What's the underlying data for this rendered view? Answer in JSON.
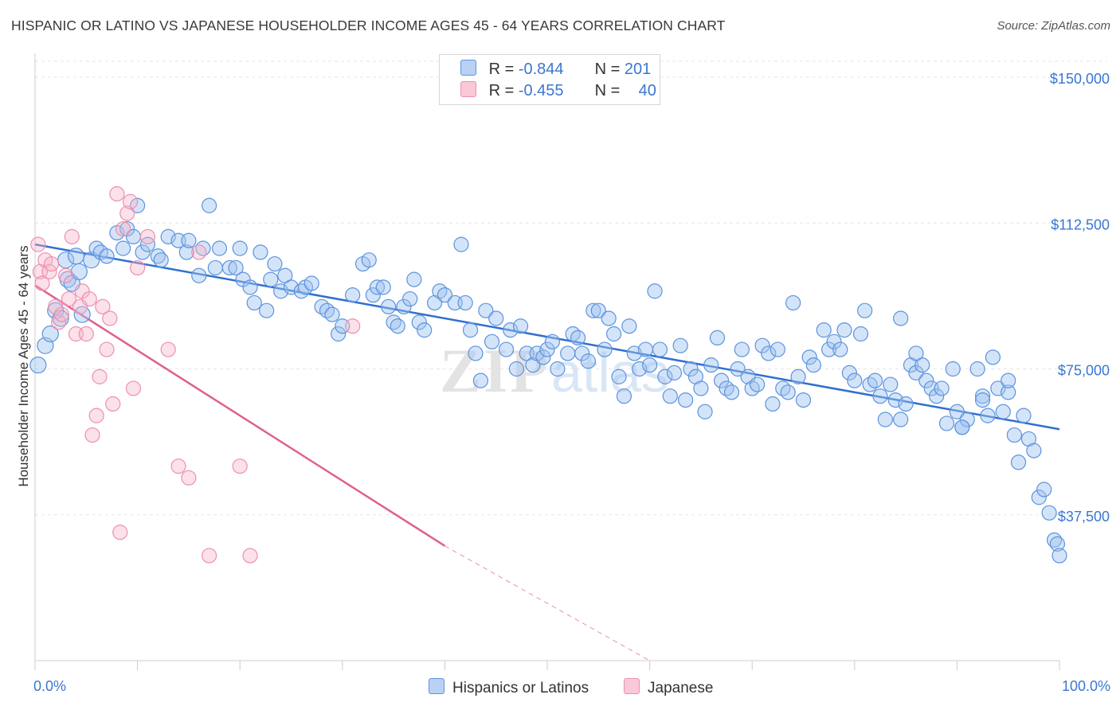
{
  "title": "HISPANIC OR LATINO VS JAPANESE HOUSEHOLDER INCOME AGES 45 - 64 YEARS CORRELATION CHART",
  "source": "Source: ZipAtlas.com",
  "legend": {
    "rows": [
      {
        "r_label": "R =",
        "r_value": "-0.844",
        "n_label": "N =",
        "n_value": "201"
      },
      {
        "r_label": "R =",
        "r_value": "-0.455",
        "n_label": "N =",
        "n_value": "40"
      }
    ]
  },
  "chart_data": {
    "type": "scatter",
    "title": "HISPANIC OR LATINO VS JAPANESE HOUSEHOLDER INCOME AGES 45 - 64 YEARS CORRELATION CHART",
    "xlabel": "",
    "ylabel": "Householder Income Ages 45 - 64 years",
    "xlim": [
      0,
      100
    ],
    "ylim": [
      0,
      155000
    ],
    "x_tick_labels": [
      "0.0%",
      "100.0%"
    ],
    "y_ticks": [
      37500,
      75000,
      112500,
      150000
    ],
    "y_tick_labels": [
      "$37,500",
      "$75,000",
      "$112,500",
      "$150,000"
    ],
    "grid": true,
    "legend_position": "top-center",
    "colors": {
      "hispanic": "#5b93de",
      "japanese": "#ee8fae",
      "hispanic_line": "#2f6fd0",
      "japanese_line": "#e0608c"
    },
    "series": [
      {
        "name": "Hispanics or Latinos",
        "r": -0.844,
        "n": 201,
        "trend": {
          "x": [
            0,
            100
          ],
          "y": [
            107000,
            59500
          ]
        },
        "points": [
          [
            0.3,
            76
          ],
          [
            1,
            81
          ],
          [
            1.5,
            84
          ],
          [
            2,
            90
          ],
          [
            2.5,
            88
          ],
          [
            3,
            103
          ],
          [
            3.2,
            98
          ],
          [
            3.6,
            97
          ],
          [
            4,
            104
          ],
          [
            4.3,
            100
          ],
          [
            4.6,
            89
          ],
          [
            5.5,
            103
          ],
          [
            6,
            106
          ],
          [
            6.4,
            105
          ],
          [
            7,
            104
          ],
          [
            8,
            110
          ],
          [
            8.6,
            106
          ],
          [
            9,
            111
          ],
          [
            9.6,
            109
          ],
          [
            10,
            117
          ],
          [
            10.5,
            105
          ],
          [
            11,
            107
          ],
          [
            12,
            104
          ],
          [
            12.3,
            103
          ],
          [
            13,
            109
          ],
          [
            14,
            108
          ],
          [
            14.8,
            105
          ],
          [
            15,
            108
          ],
          [
            16,
            99
          ],
          [
            16.4,
            106
          ],
          [
            17,
            117
          ],
          [
            17.6,
            101
          ],
          [
            18,
            106
          ],
          [
            19,
            101
          ],
          [
            19.6,
            101
          ],
          [
            20,
            106
          ],
          [
            20.3,
            98
          ],
          [
            21,
            96
          ],
          [
            21.4,
            92
          ],
          [
            22,
            105
          ],
          [
            22.6,
            90
          ],
          [
            23,
            98
          ],
          [
            23.4,
            102
          ],
          [
            24,
            95
          ],
          [
            24.4,
            99
          ],
          [
            25,
            96
          ],
          [
            26,
            95
          ],
          [
            26.4,
            96
          ],
          [
            27,
            97
          ],
          [
            28,
            91
          ],
          [
            28.5,
            90
          ],
          [
            29,
            89
          ],
          [
            29.6,
            84
          ],
          [
            30,
            86
          ],
          [
            31,
            94
          ],
          [
            32,
            102
          ],
          [
            32.6,
            103
          ],
          [
            33,
            94
          ],
          [
            33.4,
            96
          ],
          [
            34,
            96
          ],
          [
            34.5,
            91
          ],
          [
            35,
            87
          ],
          [
            35.4,
            86
          ],
          [
            36,
            91
          ],
          [
            36.6,
            93
          ],
          [
            37,
            98
          ],
          [
            37.5,
            87
          ],
          [
            38,
            85
          ],
          [
            39,
            92
          ],
          [
            39.5,
            95
          ],
          [
            40,
            94
          ],
          [
            41,
            92
          ],
          [
            41.6,
            107
          ],
          [
            42,
            92
          ],
          [
            42.5,
            85
          ],
          [
            43,
            79
          ],
          [
            43.5,
            72
          ],
          [
            44,
            90
          ],
          [
            44.6,
            82
          ],
          [
            45,
            88
          ],
          [
            46,
            80
          ],
          [
            46.4,
            85
          ],
          [
            47,
            75
          ],
          [
            47.4,
            86
          ],
          [
            48,
            79
          ],
          [
            48.6,
            76
          ],
          [
            49,
            79
          ],
          [
            49.6,
            78
          ],
          [
            50,
            80
          ],
          [
            50.5,
            82
          ],
          [
            51,
            75
          ],
          [
            52,
            79
          ],
          [
            52.5,
            84
          ],
          [
            53,
            83
          ],
          [
            53.4,
            79
          ],
          [
            54,
            77
          ],
          [
            54.5,
            90
          ],
          [
            55,
            90
          ],
          [
            55.6,
            80
          ],
          [
            56,
            88
          ],
          [
            56.5,
            84
          ],
          [
            57,
            73
          ],
          [
            57.5,
            68
          ],
          [
            58,
            86
          ],
          [
            58.5,
            79
          ],
          [
            59,
            75
          ],
          [
            59.6,
            80
          ],
          [
            60,
            76
          ],
          [
            60.5,
            95
          ],
          [
            61,
            80
          ],
          [
            61.5,
            73
          ],
          [
            62,
            68
          ],
          [
            62.4,
            74
          ],
          [
            63,
            81
          ],
          [
            63.5,
            67
          ],
          [
            64,
            75
          ],
          [
            64.5,
            73
          ],
          [
            65,
            70
          ],
          [
            65.4,
            64
          ],
          [
            66,
            76
          ],
          [
            66.6,
            83
          ],
          [
            67,
            72
          ],
          [
            67.5,
            70
          ],
          [
            68,
            69
          ],
          [
            68.6,
            75
          ],
          [
            69,
            80
          ],
          [
            69.6,
            73
          ],
          [
            70,
            70
          ],
          [
            70.5,
            71
          ],
          [
            71,
            81
          ],
          [
            71.6,
            79
          ],
          [
            72,
            66
          ],
          [
            72.5,
            80
          ],
          [
            73,
            70
          ],
          [
            73.5,
            69
          ],
          [
            74,
            92
          ],
          [
            74.5,
            73
          ],
          [
            75,
            67
          ],
          [
            75.6,
            78
          ],
          [
            76,
            76
          ],
          [
            77,
            85
          ],
          [
            77.5,
            80
          ],
          [
            78,
            82
          ],
          [
            78.6,
            80
          ],
          [
            79,
            85
          ],
          [
            79.5,
            74
          ],
          [
            80,
            72
          ],
          [
            80.6,
            84
          ],
          [
            81,
            90
          ],
          [
            81.5,
            71
          ],
          [
            82,
            72
          ],
          [
            82.5,
            68
          ],
          [
            83,
            62
          ],
          [
            83.5,
            71
          ],
          [
            84,
            67
          ],
          [
            84.5,
            62
          ],
          [
            85,
            66
          ],
          [
            85.5,
            76
          ],
          [
            86,
            74
          ],
          [
            86.6,
            76
          ],
          [
            87,
            72
          ],
          [
            87.5,
            70
          ],
          [
            88,
            68
          ],
          [
            88.5,
            70
          ],
          [
            89,
            61
          ],
          [
            89.6,
            75
          ],
          [
            90,
            64
          ],
          [
            90.5,
            60
          ],
          [
            91,
            62
          ],
          [
            92,
            75
          ],
          [
            92.5,
            68
          ],
          [
            93,
            63
          ],
          [
            93.5,
            78
          ],
          [
            94,
            70
          ],
          [
            94.5,
            64
          ],
          [
            95,
            69
          ],
          [
            95.6,
            58
          ],
          [
            96,
            51
          ],
          [
            96.5,
            63
          ],
          [
            97,
            57
          ],
          [
            97.5,
            54
          ],
          [
            98,
            42
          ],
          [
            98.5,
            44
          ],
          [
            99,
            38
          ],
          [
            99.5,
            31
          ],
          [
            99.8,
            30
          ],
          [
            100,
            27
          ],
          [
            84.5,
            88
          ],
          [
            86,
            79
          ],
          [
            90.5,
            60
          ],
          [
            92.5,
            67
          ],
          [
            95,
            72
          ]
        ]
      },
      {
        "name": "Japanese",
        "r": -0.455,
        "n": 40,
        "trend": {
          "x": [
            0,
            40
          ],
          "y": [
            96500,
            29500
          ]
        },
        "trend_dashed": {
          "x": [
            40,
            60
          ],
          "y": [
            29500,
            0
          ]
        },
        "points": [
          [
            0.3,
            107
          ],
          [
            0.5,
            100
          ],
          [
            0.7,
            97
          ],
          [
            1,
            103
          ],
          [
            1.4,
            100
          ],
          [
            1.6,
            102
          ],
          [
            2,
            91
          ],
          [
            2.3,
            87
          ],
          [
            2.6,
            89
          ],
          [
            3,
            99
          ],
          [
            3.3,
            93
          ],
          [
            3.6,
            109
          ],
          [
            4,
            84
          ],
          [
            4.4,
            91
          ],
          [
            4.6,
            95
          ],
          [
            5,
            84
          ],
          [
            5.3,
            93
          ],
          [
            5.6,
            58
          ],
          [
            6,
            63
          ],
          [
            6.3,
            73
          ],
          [
            6.6,
            91
          ],
          [
            7,
            80
          ],
          [
            7.3,
            88
          ],
          [
            7.6,
            66
          ],
          [
            8,
            120
          ],
          [
            8.3,
            33
          ],
          [
            8.6,
            111
          ],
          [
            9,
            115
          ],
          [
            9.3,
            118
          ],
          [
            9.6,
            70
          ],
          [
            10,
            101
          ],
          [
            11,
            109
          ],
          [
            13,
            80
          ],
          [
            14,
            50
          ],
          [
            15,
            47
          ],
          [
            16,
            105
          ],
          [
            17,
            27
          ],
          [
            20,
            50
          ],
          [
            21,
            27
          ],
          [
            31,
            86
          ]
        ]
      }
    ]
  }
}
